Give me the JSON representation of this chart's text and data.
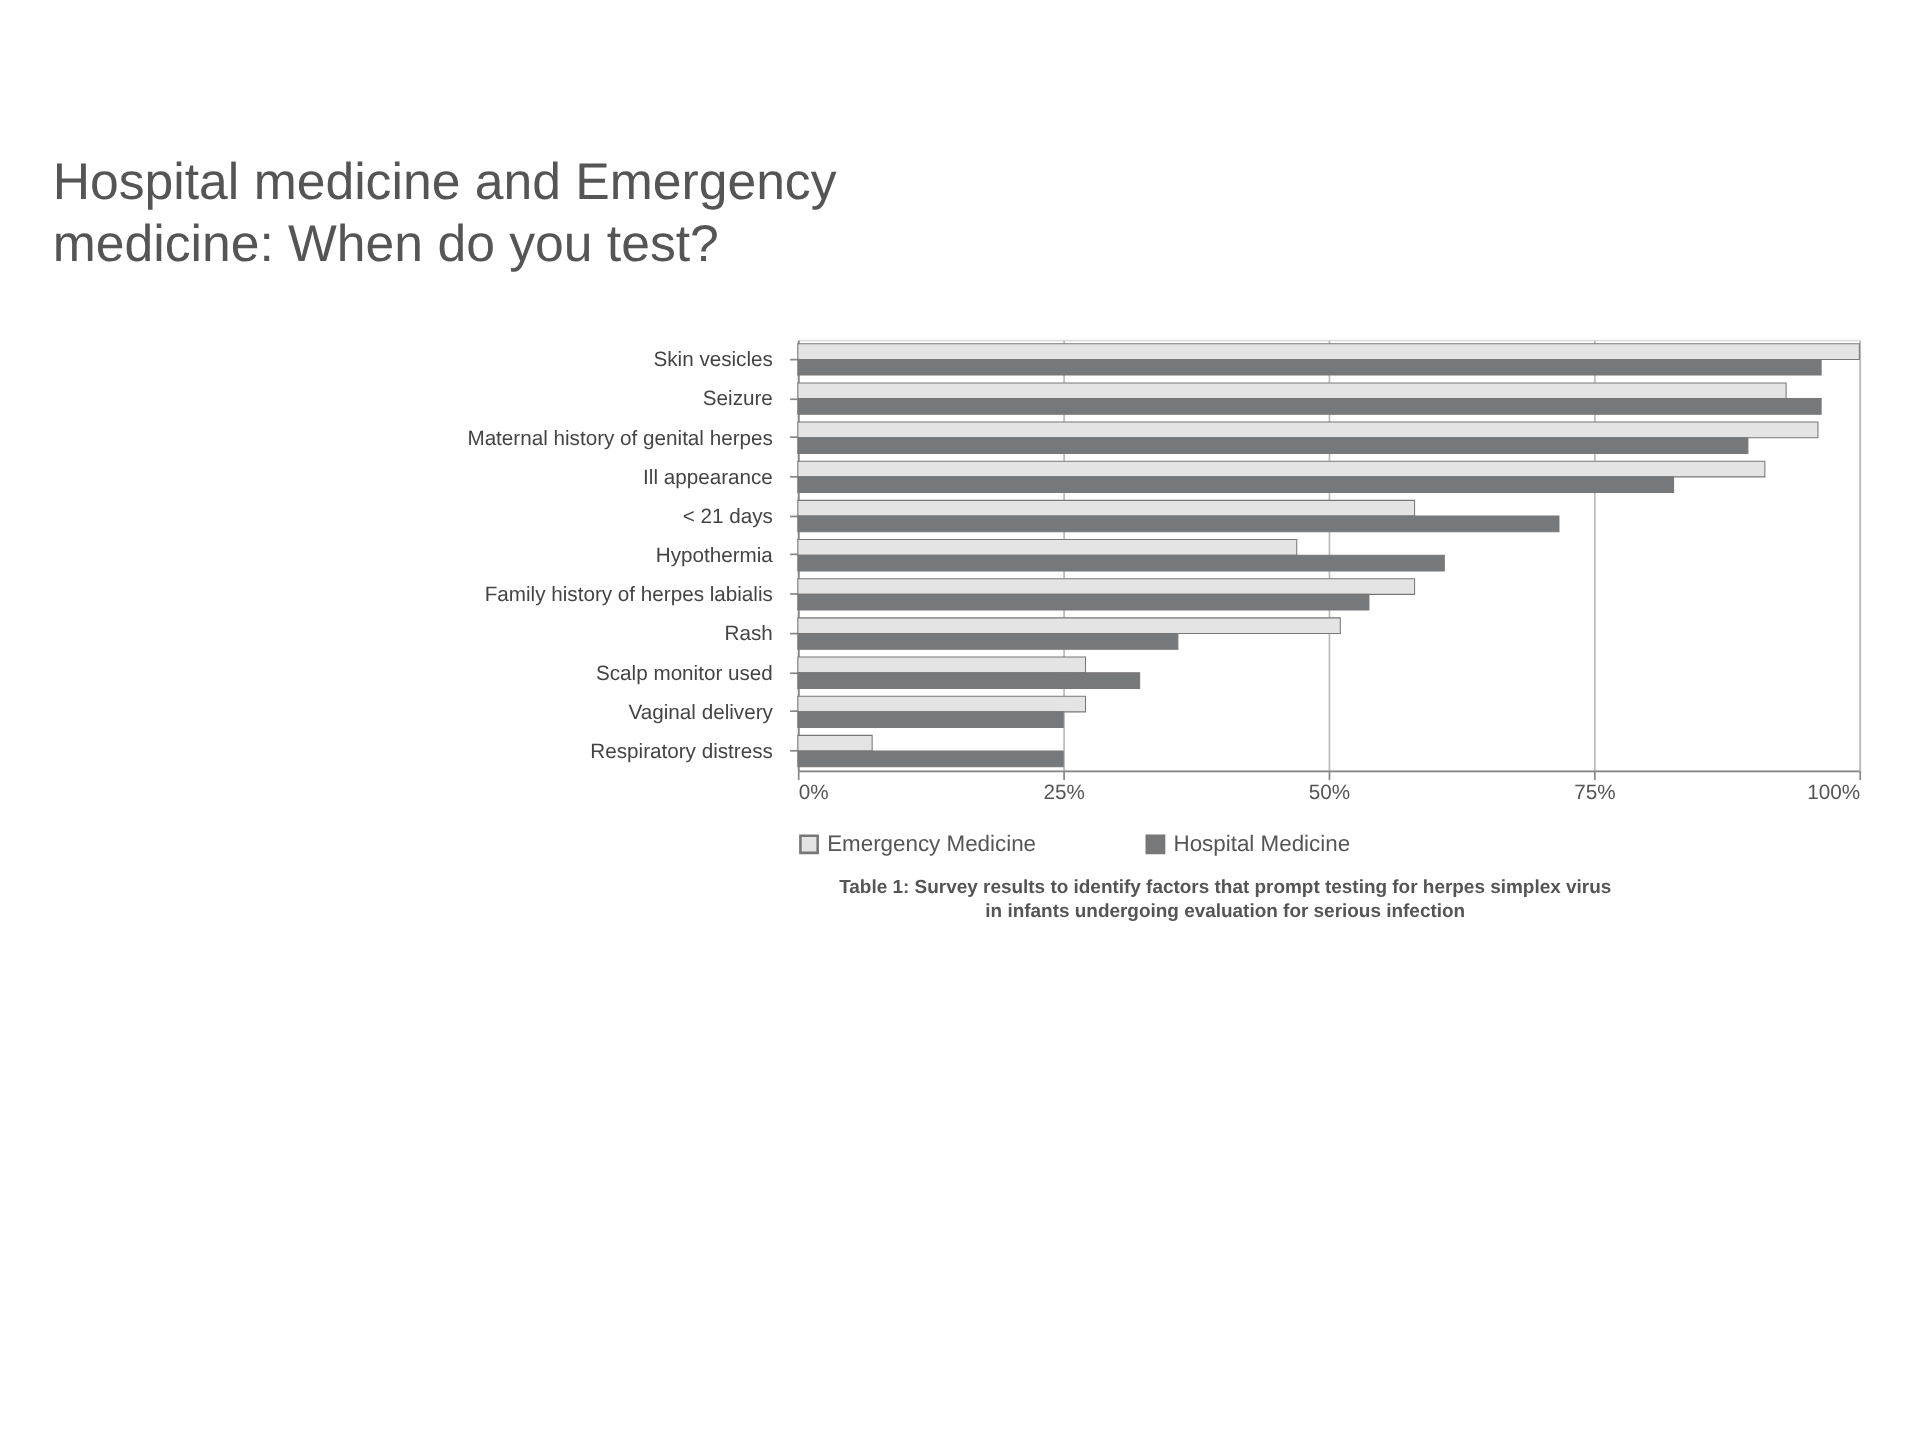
{
  "chart_data": {
    "type": "bar",
    "orientation": "horizontal",
    "title": "Hospital medicine and Emergency medicine: When do you test?",
    "categories": [
      "Skin vesicles",
      "Seizure",
      "Maternal history of genital herpes",
      "Ill appearance",
      "< 21 days",
      "Hypothermia",
      "Family history of herpes labialis",
      "Rash",
      "Scalp monitor used",
      "Vaginal delivery",
      "Respiratory distress"
    ],
    "series": [
      {
        "name": "Emergency Medicine",
        "color": "#e4e4e4",
        "values": [
          100,
          93.1,
          96.1,
          91.1,
          58.1,
          47.0,
          58.1,
          51.1,
          27.1,
          27.1,
          7.0
        ]
      },
      {
        "name": "Hospital Medicine",
        "color": "#76797c",
        "values": [
          96.4,
          96.4,
          89.5,
          82.5,
          71.7,
          60.9,
          53.8,
          35.8,
          32.2,
          25.0,
          25.0
        ]
      }
    ],
    "xlim": [
      0,
      100
    ],
    "xticks": [
      {
        "value": 0,
        "label": "0%"
      },
      {
        "value": 25,
        "label": "25%"
      },
      {
        "value": 50,
        "label": "50%"
      },
      {
        "value": 75,
        "label": "75%"
      },
      {
        "value": 100,
        "label": "100%"
      }
    ],
    "grid": "x",
    "legend": "bottom",
    "annotations": [
      "Table 1: Survey results to identify factors that prompt testing for herpes simplex virus in infants undergoing evaluation for serious infection"
    ]
  }
}
